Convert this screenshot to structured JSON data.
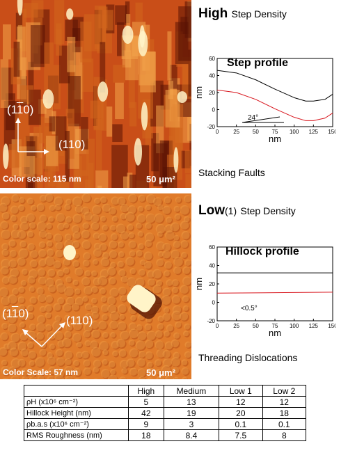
{
  "panel_high": {
    "direction_a": "(1",
    "direction_a_bar": "1",
    "direction_a_end": "0)",
    "direction_b": "(110)",
    "color_scale": "Color scale: 115 nm",
    "scale_bar": "50 μm²",
    "heading_main": "High",
    "heading_sub": "Step Density",
    "caption": "Stacking Faults"
  },
  "panel_low": {
    "direction_a": "(1",
    "direction_a_bar": "1",
    "direction_a_end": "0)",
    "direction_b": "(110)",
    "color_scale": "Color Scale: 57 nm",
    "scale_bar": "50 μm²",
    "heading_main": "Low",
    "heading_num": "(1)",
    "heading_sub": "Step Density",
    "caption": "Threading Dislocations"
  },
  "chart_data": [
    {
      "type": "line",
      "title": "Step profile",
      "xlabel": "nm",
      "ylabel": "nm",
      "xlim": [
        0,
        150
      ],
      "ylim": [
        -20,
        60
      ],
      "xticks": [
        "0",
        "25",
        "50",
        "75",
        "100",
        "125",
        "150"
      ],
      "yticks": [
        "60",
        "40",
        "20",
        "0",
        "-20"
      ],
      "annotation": "24°",
      "series": [
        {
          "color": "#000000",
          "x": [
            0,
            25,
            50,
            75,
            100,
            115,
            125,
            140,
            150
          ],
          "y": [
            46,
            43,
            35,
            24,
            14,
            10,
            10,
            12,
            18
          ]
        },
        {
          "color": "#d8141c",
          "x": [
            0,
            25,
            50,
            75,
            100,
            115,
            125,
            140,
            150
          ],
          "y": [
            23,
            20,
            12,
            1,
            -9,
            -13,
            -13,
            -10,
            -4
          ]
        }
      ]
    },
    {
      "type": "line",
      "title": "Hillock profile",
      "xlabel": "nm",
      "ylabel": "nm",
      "xlim": [
        0,
        150
      ],
      "ylim": [
        -20,
        60
      ],
      "xticks": [
        "0",
        "25",
        "50",
        "75",
        "100",
        "125",
        "150"
      ],
      "yticks": [
        "60",
        "40",
        "20",
        "0",
        "-20"
      ],
      "annotation": "<0.5°",
      "series": [
        {
          "color": "#000000",
          "x": [
            0,
            150
          ],
          "y": [
            32,
            32
          ]
        },
        {
          "color": "#d8141c",
          "x": [
            0,
            150
          ],
          "y": [
            10,
            11
          ]
        }
      ]
    }
  ],
  "table": {
    "columns": [
      "High",
      "Medium",
      "Low 1",
      "Low 2"
    ],
    "rows": [
      {
        "label": "ρH (x10⁶ cm⁻²)",
        "values": [
          "5",
          "13",
          "12",
          "12"
        ]
      },
      {
        "label": "Hillock Height (nm)",
        "values": [
          "42",
          "19",
          "20",
          "18"
        ]
      },
      {
        "label": "ρb.a.s (x10⁶ cm⁻²)",
        "values": [
          "9",
          "3",
          "0.1",
          "0.1"
        ]
      },
      {
        "label": "RMS Roughness (nm)",
        "values": [
          "18",
          "8.4",
          "7.5",
          "8"
        ]
      }
    ]
  },
  "colors": {
    "afm_dark": "#5a1204",
    "afm_mid": "#d2661e",
    "afm_light": "#fff4c8",
    "series_black": "#000000",
    "series_red": "#d8141c"
  }
}
